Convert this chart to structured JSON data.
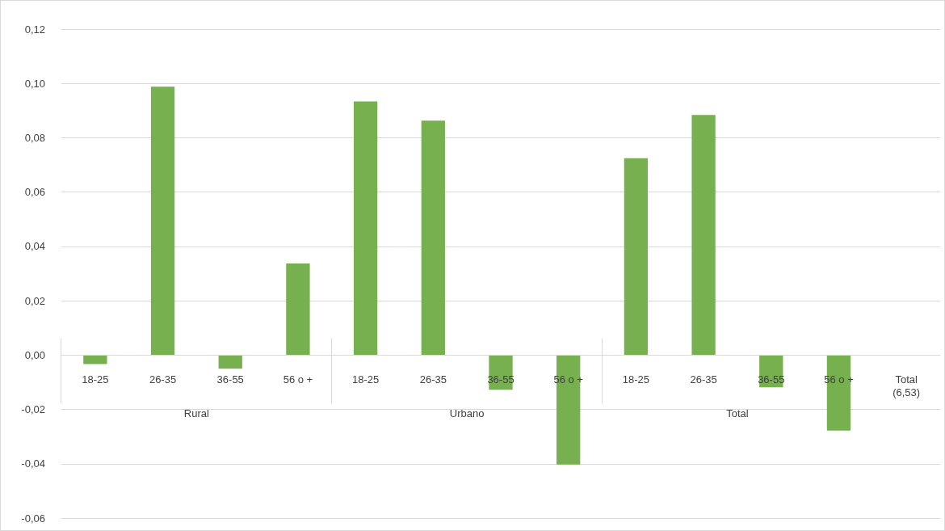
{
  "chart_data": {
    "type": "bar",
    "categories": [
      "18-25",
      "26-35",
      "36-55",
      "56 o +",
      "18-25",
      "26-35",
      "36-55",
      "56 o +",
      "18-25",
      "26-35",
      "36-55",
      "56 o +",
      "Total\n(6,53)"
    ],
    "values": [
      -0.0033,
      0.0988,
      -0.005,
      0.0337,
      0.0934,
      0.0863,
      -0.0128,
      -0.0403,
      0.0725,
      0.0884,
      -0.0119,
      -0.0278,
      null
    ],
    "color": "#77b04f",
    "ylim": [
      -0.06,
      0.12
    ],
    "yticks": [
      {
        "value": -0.06,
        "label": "-0,06"
      },
      {
        "value": -0.04,
        "label": "-0,04"
      },
      {
        "value": -0.02,
        "label": "-0,02"
      },
      {
        "value": 0,
        "label": "0,00"
      },
      {
        "value": 0.02,
        "label": "0,02"
      },
      {
        "value": 0.04,
        "label": "0,04"
      },
      {
        "value": 0.06,
        "label": "0,06"
      },
      {
        "value": 0.08,
        "label": "0,08"
      },
      {
        "value": 0.1,
        "label": "0,10"
      },
      {
        "value": 0.12,
        "label": "0,12"
      }
    ],
    "annotations": [
      "Rural",
      "Urbano",
      "Total"
    ],
    "grid": "y"
  }
}
